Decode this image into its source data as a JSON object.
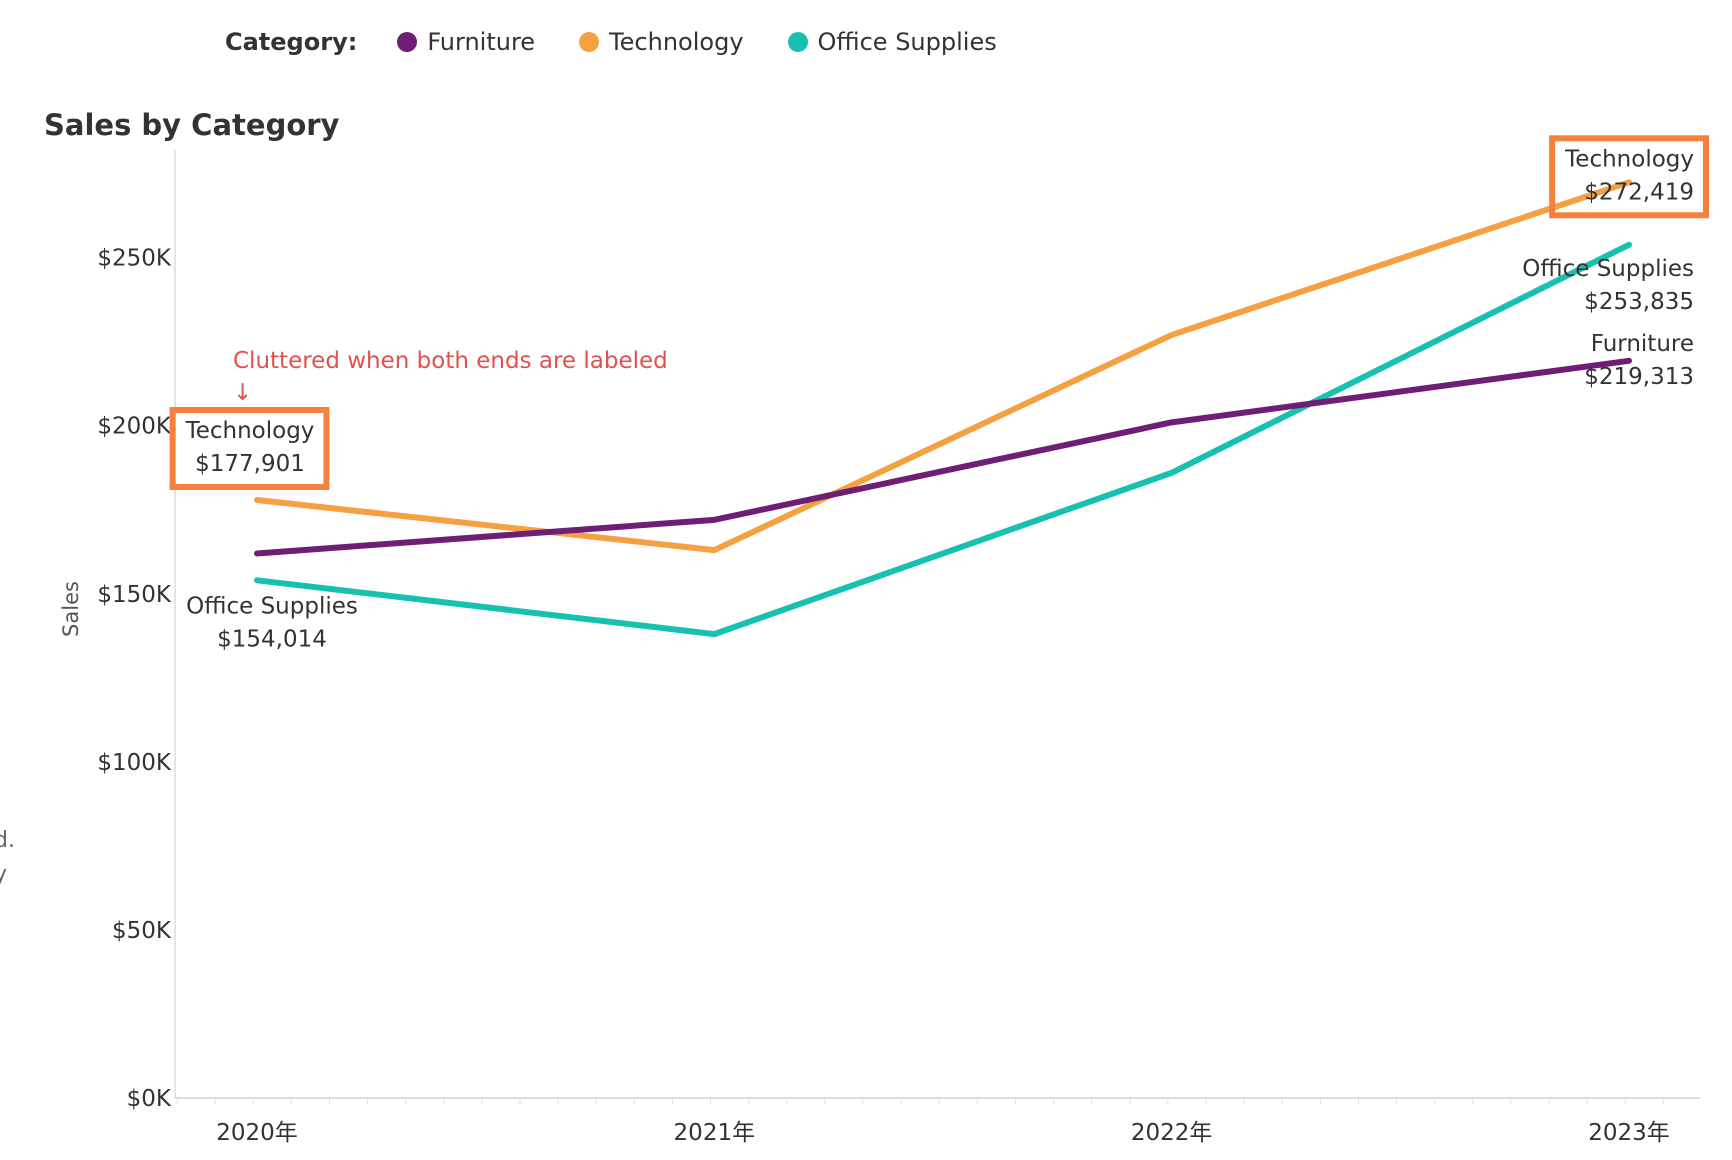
{
  "legend": {
    "label": "Category:",
    "items": [
      {
        "name": "Furniture",
        "color": "#6f1e76"
      },
      {
        "name": "Technology",
        "color": "#f5a142"
      },
      {
        "name": "Office Supplies",
        "color": "#17c1b1"
      }
    ]
  },
  "side_clipped_text": [
    "d.",
    "y"
  ],
  "highlight_color": "#f5813c",
  "chart_data": {
    "type": "line",
    "title": "Sales by Category",
    "xlabel": "",
    "ylabel": "Sales",
    "categories": [
      "2020年",
      "2021年",
      "2022年",
      "2023年"
    ],
    "ylim": [
      0,
      285000
    ],
    "yticks": [
      {
        "value": 0,
        "label": "$0K"
      },
      {
        "value": 50000,
        "label": "$50K"
      },
      {
        "value": 100000,
        "label": "$100K"
      },
      {
        "value": 150000,
        "label": "$150K"
      },
      {
        "value": 200000,
        "label": "$200K"
      },
      {
        "value": 250000,
        "label": "$250K"
      }
    ],
    "grid": false,
    "series": [
      {
        "name": "Furniture",
        "color": "#6f1e76",
        "values": [
          162000,
          172000,
          201000,
          219313
        ]
      },
      {
        "name": "Technology",
        "color": "#f5a142",
        "values": [
          177901,
          163000,
          227000,
          272419
        ]
      },
      {
        "name": "Office Supplies",
        "color": "#17c1b1",
        "values": [
          154014,
          138000,
          186000,
          253835
        ]
      }
    ],
    "labels": [
      {
        "series": "Technology",
        "point": "2020年",
        "name": "Technology",
        "value": "$177,901",
        "highlighted": true
      },
      {
        "series": "Office Supplies",
        "point": "2020年",
        "name": "Office Supplies",
        "value": "$154,014",
        "highlighted": false
      },
      {
        "series": "Technology",
        "point": "2023年",
        "name": "Technology",
        "value": "$272,419",
        "highlighted": true
      },
      {
        "series": "Office Supplies",
        "point": "2023年",
        "name": "Office Supplies",
        "value": "$253,835",
        "highlighted": false
      },
      {
        "series": "Furniture",
        "point": "2023年",
        "name": "Furniture",
        "value": "$219,313",
        "highlighted": false
      }
    ],
    "annotation": {
      "text": "Cluttered when both ends are labeled",
      "arrow": "↓"
    }
  }
}
